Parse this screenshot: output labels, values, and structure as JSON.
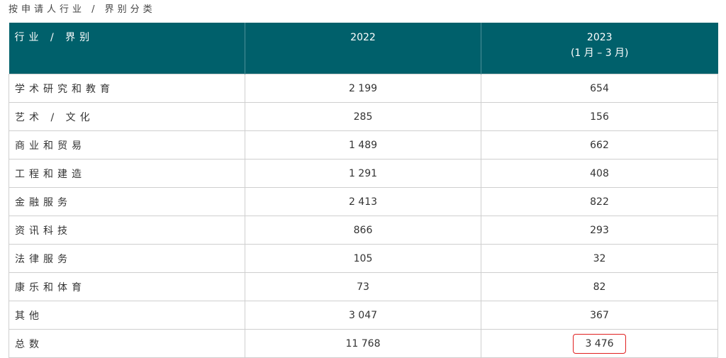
{
  "caption": "按申请人行业 / 界别分类",
  "table": {
    "header": [
      [
        "行业 / 界别"
      ],
      [
        "2022"
      ],
      [
        "2023",
        "(1 月 – 3 月)"
      ]
    ],
    "rows": [
      [
        "学术研究和教育",
        "2 199",
        "654"
      ],
      [
        "艺术 / 文化",
        "285",
        "156"
      ],
      [
        "商业和贸易",
        "1 489",
        "662"
      ],
      [
        "工程和建造",
        "1 291",
        "408"
      ],
      [
        "金融服务",
        "2 413",
        "822"
      ],
      [
        "资讯科技",
        "866",
        "293"
      ],
      [
        "法律服务",
        "105",
        "32"
      ],
      [
        "康乐和体育",
        "73",
        "82"
      ],
      [
        "其他",
        "3 047",
        "367"
      ],
      [
        "总数",
        "11 768",
        "3 476"
      ]
    ]
  }
}
